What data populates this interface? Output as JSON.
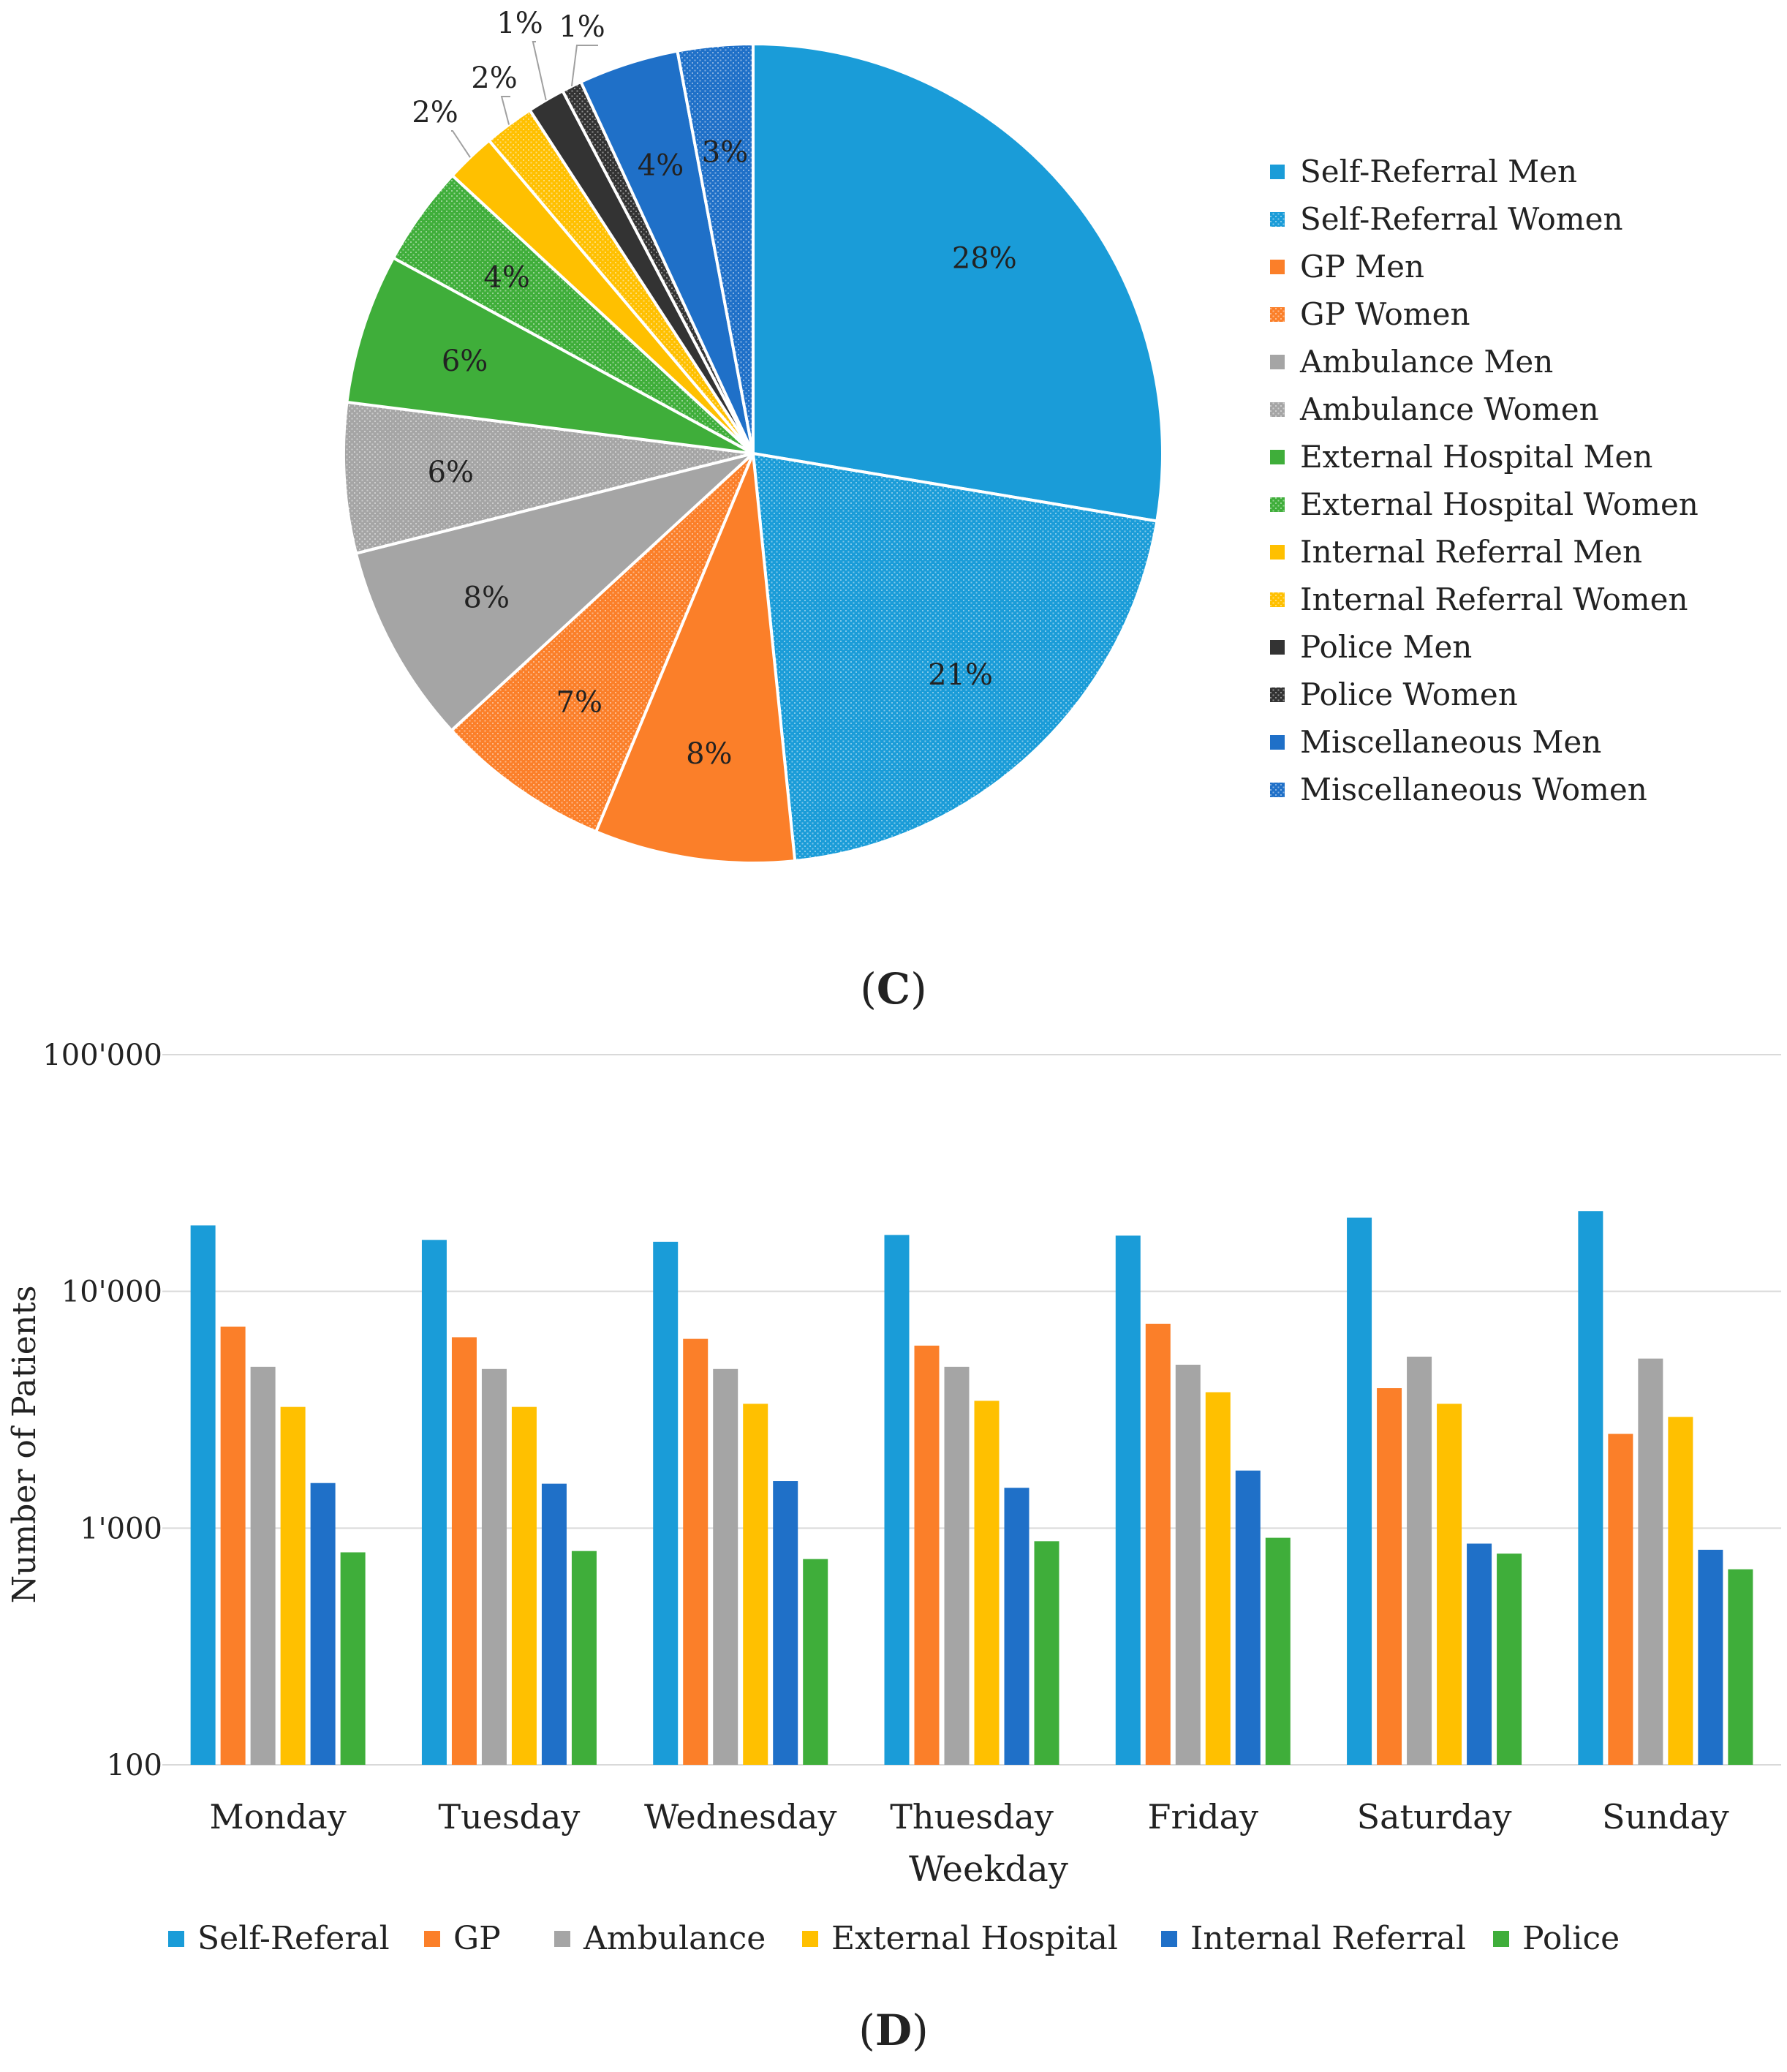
{
  "colors": {
    "self": "#1a9cd8",
    "gp": "#fb7f29",
    "ambulance": "#a5a5a5",
    "external": "#ffc000",
    "internal": "#1f70c8",
    "police_bar": "#3fae3a",
    "police_pie": "#333333",
    "misc": "#1f70c8",
    "grid": "#d9d9d9",
    "text": "#222222"
  },
  "chart_data": [
    {
      "type": "pie",
      "panel_label": "(C)",
      "panel_letter": "C",
      "slices": [
        {
          "label": "Self-Referral Men",
          "value": 28,
          "text": "28%",
          "color": "#1a9cd8",
          "pattern": false
        },
        {
          "label": "Self-Referral Women",
          "value": 21,
          "text": "21%",
          "color": "#1a9cd8",
          "pattern": true
        },
        {
          "label": "GP Men",
          "value": 8,
          "text": "8%",
          "color": "#fb7f29",
          "pattern": false
        },
        {
          "label": "GP Women",
          "value": 7,
          "text": "7%",
          "color": "#fb7f29",
          "pattern": true
        },
        {
          "label": "Ambulance Men",
          "value": 8,
          "text": "8%",
          "color": "#a5a5a5",
          "pattern": false
        },
        {
          "label": "Ambulance Women",
          "value": 6,
          "text": "6%",
          "color": "#a5a5a5",
          "pattern": true
        },
        {
          "label": "External Hospital Men",
          "value": 6,
          "text": "6%",
          "color": "#3fae3a",
          "pattern": false
        },
        {
          "label": "External Hospital Women",
          "value": 4,
          "text": "4%",
          "color": "#3fae3a",
          "pattern": true
        },
        {
          "label": "Internal Referral Men",
          "value": 2,
          "text": "2%",
          "color": "#ffc000",
          "pattern": false
        },
        {
          "label": "Internal Referral Women",
          "value": 2,
          "text": "2%",
          "color": "#ffc000",
          "pattern": true
        },
        {
          "label": "Police Men",
          "value": 1.5,
          "text": "1%",
          "color": "#333333",
          "pattern": false
        },
        {
          "label": "Police Women",
          "value": 0.8,
          "text": "1%",
          "color": "#333333",
          "pattern": true
        },
        {
          "label": "Miscellaneous Men",
          "value": 4,
          "text": "4%",
          "color": "#1f70c8",
          "pattern": false
        },
        {
          "label": "Miscellaneous Women",
          "value": 3,
          "text": "3%",
          "color": "#1f70c8",
          "pattern": true
        }
      ],
      "legend_position": "right"
    },
    {
      "type": "bar",
      "panel_label": "(D)",
      "panel_letter": "D",
      "scale": "log",
      "xlabel": "Weekday",
      "ylabel": "Number of Patients",
      "ylim": [
        100,
        100000
      ],
      "yticks": [
        {
          "value": 100,
          "label": "100"
        },
        {
          "value": 1000,
          "label": "1'000"
        },
        {
          "value": 10000,
          "label": "10'000"
        },
        {
          "value": 100000,
          "label": "100'000"
        }
      ],
      "categories": [
        "Monday",
        "Tuesday",
        "Wednesday",
        "Thuesday",
        "Friday",
        "Saturday",
        "Sunday"
      ],
      "series": [
        {
          "name": "Self-Referal",
          "color": "#1a9cd8",
          "values": [
            19000,
            16500,
            16200,
            17300,
            17200,
            20500,
            21800
          ]
        },
        {
          "name": "GP",
          "color": "#fb7f29",
          "values": [
            7100,
            6400,
            6300,
            5900,
            7300,
            3900,
            2500
          ]
        },
        {
          "name": "Ambulance",
          "color": "#a5a5a5",
          "values": [
            4800,
            4700,
            4700,
            4800,
            4900,
            5300,
            5200
          ]
        },
        {
          "name": "External Hospital",
          "color": "#ffc000",
          "values": [
            3250,
            3250,
            3350,
            3450,
            3750,
            3350,
            2950
          ]
        },
        {
          "name": "Internal Referral",
          "color": "#1f70c8",
          "values": [
            1550,
            1540,
            1580,
            1480,
            1750,
            860,
            810
          ]
        },
        {
          "name": "Police",
          "color": "#3fae3a",
          "values": [
            790,
            800,
            740,
            880,
            910,
            780,
            670
          ]
        }
      ],
      "legend_position": "bottom"
    }
  ]
}
